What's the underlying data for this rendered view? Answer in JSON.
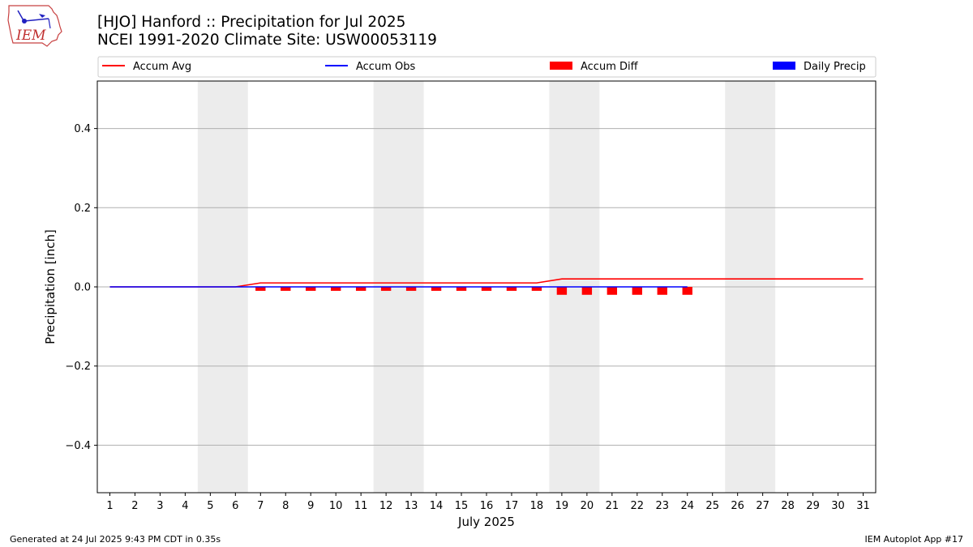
{
  "header": {
    "title_line1": "[HJO] Hanford :: Precipitation for Jul 2025",
    "title_line2": "NCEI 1991-2020 Climate Site: USW00053119"
  },
  "logo": {
    "text": "IEM"
  },
  "footer": {
    "generated": "Generated at 24 Jul 2025 9:43 PM CDT in 0.35s",
    "app": "IEM Autoplot App #17"
  },
  "chart_data": {
    "type": "line",
    "xlabel": "July 2025",
    "ylabel": "Precipitation [inch]",
    "xlim": [
      0.5,
      31.5
    ],
    "ylim": [
      -0.52,
      0.52
    ],
    "grid": "horizontal",
    "legend_position": "top",
    "x_ticks": [
      "1",
      "2",
      "3",
      "4",
      "5",
      "6",
      "7",
      "8",
      "9",
      "10",
      "11",
      "12",
      "13",
      "14",
      "15",
      "16",
      "17",
      "18",
      "19",
      "20",
      "21",
      "22",
      "23",
      "24",
      "25",
      "26",
      "27",
      "28",
      "29",
      "30",
      "31"
    ],
    "y_ticks": [
      {
        "value": -0.4,
        "label": "−0.4"
      },
      {
        "value": -0.2,
        "label": "−0.2"
      },
      {
        "value": 0.0,
        "label": "0.0"
      },
      {
        "value": 0.2,
        "label": "0.2"
      },
      {
        "value": 0.4,
        "label": "0.4"
      }
    ],
    "weekend_shading": [
      [
        5,
        6
      ],
      [
        12,
        13
      ],
      [
        19,
        20
      ],
      [
        26,
        27
      ]
    ],
    "legend": [
      {
        "label": "Accum Avg",
        "kind": "line",
        "color": "#ff0000"
      },
      {
        "label": "Accum Obs",
        "kind": "line",
        "color": "#0000ff"
      },
      {
        "label": "Accum Diff",
        "kind": "bar",
        "color": "#ff0000"
      },
      {
        "label": "Daily Precip",
        "kind": "bar",
        "color": "#0000ff"
      }
    ],
    "series": [
      {
        "name": "Accum Avg",
        "type": "line",
        "color": "#ff0000",
        "x": [
          1,
          2,
          3,
          4,
          5,
          6,
          7,
          8,
          9,
          10,
          11,
          12,
          13,
          14,
          15,
          16,
          17,
          18,
          19,
          20,
          21,
          22,
          23,
          24,
          25,
          26,
          27,
          28,
          29,
          30,
          31
        ],
        "values": [
          0,
          0,
          0,
          0,
          0,
          0,
          0.01,
          0.01,
          0.01,
          0.01,
          0.01,
          0.01,
          0.01,
          0.01,
          0.01,
          0.01,
          0.01,
          0.01,
          0.02,
          0.02,
          0.02,
          0.02,
          0.02,
          0.02,
          0.02,
          0.02,
          0.02,
          0.02,
          0.02,
          0.02,
          0.02
        ]
      },
      {
        "name": "Accum Obs",
        "type": "line",
        "color": "#0000ff",
        "x": [
          1,
          2,
          3,
          4,
          5,
          6,
          7,
          8,
          9,
          10,
          11,
          12,
          13,
          14,
          15,
          16,
          17,
          18,
          19,
          20,
          21,
          22,
          23,
          24
        ],
        "values": [
          0,
          0,
          0,
          0,
          0,
          0,
          0,
          0,
          0,
          0,
          0,
          0,
          0,
          0,
          0,
          0,
          0,
          0,
          0,
          0,
          0,
          0,
          0,
          0
        ]
      },
      {
        "name": "Accum Diff",
        "type": "bar",
        "color": "#ff0000",
        "x": [
          1,
          2,
          3,
          4,
          5,
          6,
          7,
          8,
          9,
          10,
          11,
          12,
          13,
          14,
          15,
          16,
          17,
          18,
          19,
          20,
          21,
          22,
          23,
          24
        ],
        "values": [
          0,
          0,
          0,
          0,
          0,
          0,
          -0.01,
          -0.01,
          -0.01,
          -0.01,
          -0.01,
          -0.01,
          -0.01,
          -0.01,
          -0.01,
          -0.01,
          -0.01,
          -0.01,
          -0.02,
          -0.02,
          -0.02,
          -0.02,
          -0.02,
          -0.02
        ]
      },
      {
        "name": "Daily Precip",
        "type": "bar",
        "color": "#0000ff",
        "x": [
          1,
          2,
          3,
          4,
          5,
          6,
          7,
          8,
          9,
          10,
          11,
          12,
          13,
          14,
          15,
          16,
          17,
          18,
          19,
          20,
          21,
          22,
          23,
          24
        ],
        "values": [
          0,
          0,
          0,
          0,
          0,
          0,
          0,
          0,
          0,
          0,
          0,
          0,
          0,
          0,
          0,
          0,
          0,
          0,
          0,
          0,
          0,
          0,
          0,
          0
        ]
      }
    ]
  }
}
